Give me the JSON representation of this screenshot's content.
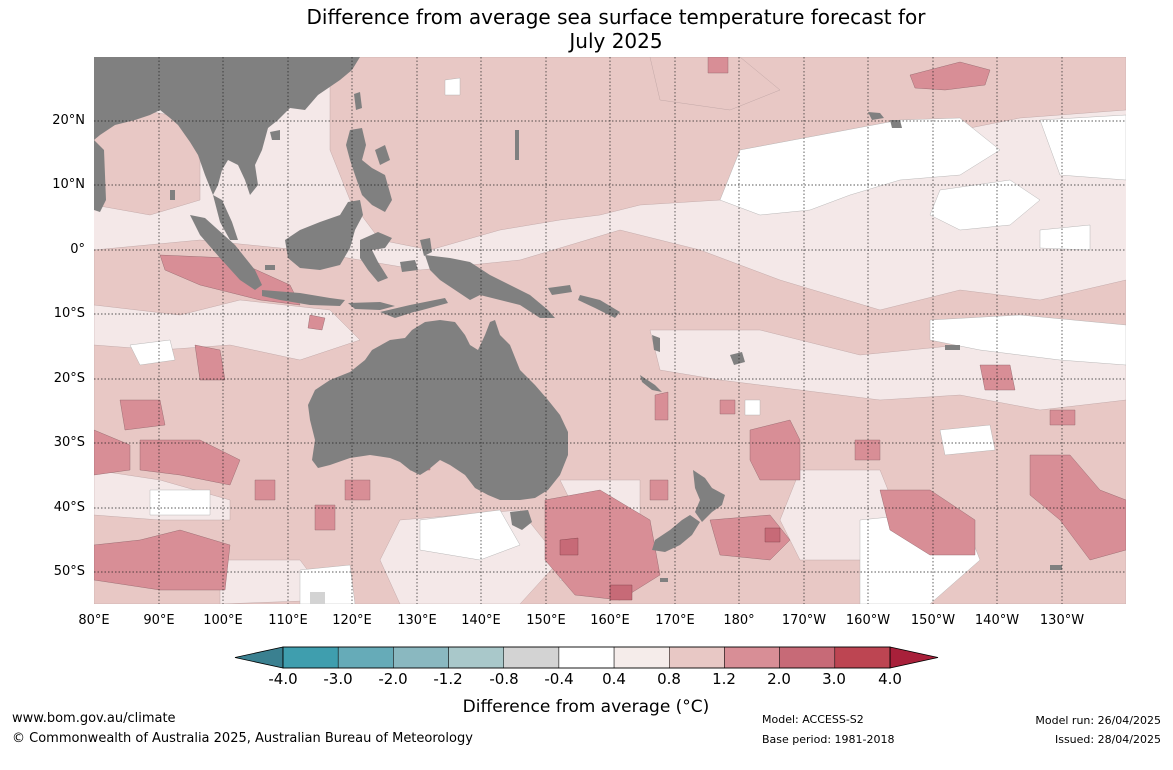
{
  "title": {
    "line1": "Difference from average sea surface temperature forecast for",
    "line2": "July 2025"
  },
  "map": {
    "latitude_labels": [
      "20°N",
      "10°N",
      "0°",
      "10°S",
      "20°S",
      "30°S",
      "40°S",
      "50°S"
    ],
    "longitude_labels": [
      "80°E",
      "90°E",
      "100°E",
      "110°E",
      "120°E",
      "130°E",
      "140°E",
      "150°E",
      "160°E",
      "170°E",
      "180°",
      "170°W",
      "160°W",
      "150°W",
      "140°W",
      "130°W"
    ],
    "colors": {
      "land": "#808080",
      "water_0_4_0_8": "#f4e8e8",
      "water_0_8_1_2": "#e8c8c5",
      "water_1_2_2_0": "#d88e96",
      "water_2_0_3_0": "#c76a77",
      "neutral": "#ffffff"
    }
  },
  "colorbar": {
    "ticks": [
      "-4.0",
      "-3.0",
      "-2.0",
      "-1.2",
      "-0.8",
      "-0.4",
      "0.4",
      "0.8",
      "1.2",
      "2.0",
      "3.0",
      "4.0"
    ],
    "colors": [
      "#3f9eae",
      "#66abb8",
      "#8ab8c0",
      "#a9c8ca",
      "#d3d3d3",
      "#ffffff",
      "#f5ecea",
      "#e8c8c5",
      "#d88e96",
      "#c76a77",
      "#bd4552"
    ],
    "low_extend_color": "#3a8090",
    "high_extend_color": "#a8203a",
    "label": "Difference from average (°C)"
  },
  "footer": {
    "website": "www.bom.gov.au/climate",
    "copyright": "© Commonwealth of Australia 2025, Australian Bureau of Meteorology",
    "model": "Model: ACCESS-S2",
    "base_period": "Base period: 1981-2018",
    "model_run": "Model run: 26/04/2025",
    "issued": "Issued: 28/04/2025"
  }
}
